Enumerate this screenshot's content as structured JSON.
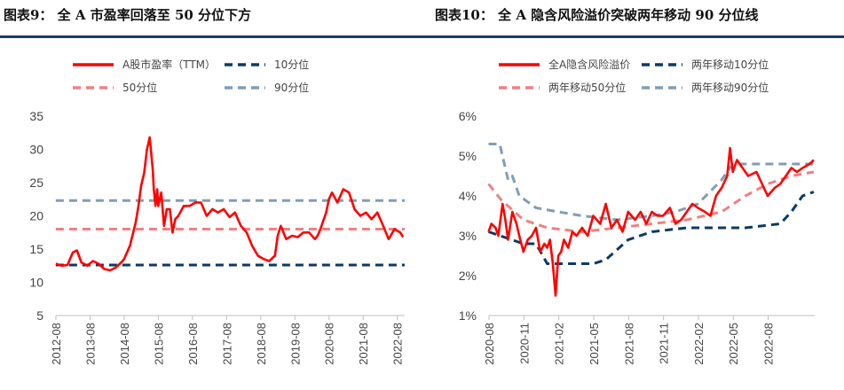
{
  "titles": {
    "left": "图表9： 全 A 市盈率回落至 50 分位下方",
    "right": "图表10： 全 A 隐含风险溢价突破两年移动 90 分位线"
  },
  "colors": {
    "red": "#ff0000",
    "navy": "#0b3a66",
    "pink": "#f08080",
    "steel": "#7f9db9",
    "axis": "#bfbfbf"
  },
  "chart_data": [
    {
      "type": "line",
      "title": "全 A 市盈率回落至 50 分位下方",
      "ylim": [
        5,
        35
      ],
      "yticks": [
        "5",
        "10",
        "15",
        "20",
        "25",
        "30",
        "35"
      ],
      "xlim": [
        2012.583,
        2022.8
      ],
      "xticks": [
        "2012-08",
        "2013-08",
        "2014-08",
        "2015-08",
        "2016-08",
        "2017-08",
        "2018-08",
        "2019-08",
        "2020-08",
        "2021-08",
        "2022-08"
      ],
      "legend": [
        "A股市盈率（TTM）",
        "10分位",
        "50分位",
        "90分位"
      ],
      "series": [
        {
          "name": "A股市盈率（TTM）",
          "x": [
            2012.58,
            2012.75,
            2012.92,
            2013.08,
            2013.2,
            2013.33,
            2013.5,
            2013.67,
            2013.83,
            2014.0,
            2014.17,
            2014.33,
            2014.5,
            2014.58,
            2014.75,
            2014.92,
            2015.0,
            2015.08,
            2015.17,
            2015.25,
            2015.33,
            2015.42,
            2015.45,
            2015.5,
            2015.55,
            2015.58,
            2015.67,
            2015.75,
            2015.83,
            2015.92,
            2016.0,
            2016.08,
            2016.17,
            2016.33,
            2016.5,
            2016.67,
            2016.83,
            2017.0,
            2017.17,
            2017.33,
            2017.5,
            2017.67,
            2017.83,
            2018.0,
            2018.17,
            2018.33,
            2018.5,
            2018.67,
            2018.83,
            2019.0,
            2019.08,
            2019.17,
            2019.25,
            2019.33,
            2019.5,
            2019.67,
            2019.83,
            2020.0,
            2020.17,
            2020.25,
            2020.33,
            2020.5,
            2020.58,
            2020.67,
            2020.83,
            2021.0,
            2021.17,
            2021.33,
            2021.5,
            2021.67,
            2021.83,
            2022.0,
            2022.17,
            2022.25,
            2022.33,
            2022.5,
            2022.67,
            2022.75
          ],
          "values": [
            12.8,
            12.5,
            12.6,
            14.5,
            14.8,
            13.0,
            12.5,
            13.2,
            12.8,
            12.0,
            11.8,
            12.2,
            13.0,
            13.5,
            15.5,
            19.0,
            21.5,
            24.5,
            26.5,
            30.0,
            31.8,
            27.0,
            24.0,
            21.5,
            24.0,
            21.5,
            23.5,
            18.5,
            21.0,
            21.0,
            17.5,
            19.5,
            20.0,
            21.5,
            21.5,
            22.0,
            22.0,
            20.0,
            21.0,
            20.5,
            21.0,
            19.8,
            20.5,
            18.5,
            17.5,
            15.5,
            14.0,
            13.5,
            13.2,
            14.0,
            17.0,
            18.5,
            17.5,
            16.5,
            17.0,
            16.8,
            17.5,
            17.5,
            16.5,
            17.0,
            18.0,
            20.5,
            22.5,
            23.5,
            22.0,
            24.0,
            23.5,
            21.0,
            20.0,
            20.5,
            19.5,
            20.5,
            18.5,
            17.5,
            16.5,
            18.0,
            17.5,
            16.8
          ]
        },
        {
          "name": "10分位",
          "x": [
            2012.58,
            2022.8
          ],
          "values": [
            12.6,
            12.6
          ]
        },
        {
          "name": "50分位",
          "x": [
            2012.58,
            2022.8
          ],
          "values": [
            18.0,
            18.0
          ]
        },
        {
          "name": "90分位",
          "x": [
            2012.58,
            2022.8
          ],
          "values": [
            22.3,
            22.3
          ]
        }
      ]
    },
    {
      "type": "line",
      "title": "全 A 隐含风险溢价突破两年移动 90 分位线",
      "ylim": [
        1,
        6
      ],
      "yticks": [
        "1%",
        "2%",
        "3%",
        "4%",
        "5%",
        "6%"
      ],
      "xlim": [
        2020.583,
        2022.917
      ],
      "xticks": [
        "2020-08",
        "2020-11",
        "2021-02",
        "2021-05",
        "2021-08",
        "2021-11",
        "2022-02",
        "2022-05",
        "2022-08"
      ],
      "legend": [
        "全A隐含风险溢价",
        "两年移动10分位",
        "两年移动50分位",
        "两年移动90分位"
      ],
      "series": [
        {
          "name": "全A隐含风险溢价",
          "x": [
            2020.58,
            2020.6,
            2020.63,
            2020.65,
            2020.68,
            2020.7,
            2020.72,
            2020.75,
            2020.78,
            2020.8,
            2020.83,
            2020.86,
            2020.89,
            2020.92,
            2020.95,
            2020.98,
            2021.0,
            2021.02,
            2021.04,
            2021.06,
            2021.08,
            2021.1,
            2021.12,
            2021.15,
            2021.18,
            2021.21,
            2021.25,
            2021.29,
            2021.33,
            2021.38,
            2021.42,
            2021.46,
            2021.5,
            2021.54,
            2021.58,
            2021.63,
            2021.67,
            2021.71,
            2021.75,
            2021.79,
            2021.83,
            2021.88,
            2021.92,
            2021.96,
            2022.0,
            2022.04,
            2022.08,
            2022.13,
            2022.17,
            2022.21,
            2022.25,
            2022.29,
            2022.31,
            2022.33,
            2022.36,
            2022.4,
            2022.44,
            2022.5,
            2022.54,
            2022.58,
            2022.63,
            2022.67,
            2022.71,
            2022.75,
            2022.79,
            2022.83,
            2022.88,
            2022.91
          ],
          "values": [
            3.1,
            3.3,
            3.2,
            3.0,
            3.8,
            3.4,
            2.9,
            3.6,
            3.3,
            3.0,
            2.6,
            2.9,
            3.0,
            3.2,
            2.6,
            2.8,
            2.7,
            2.9,
            2.3,
            1.5,
            2.5,
            2.6,
            2.9,
            2.7,
            3.1,
            3.0,
            3.2,
            3.0,
            3.5,
            3.3,
            3.8,
            3.2,
            3.4,
            3.1,
            3.6,
            3.4,
            3.6,
            3.3,
            3.6,
            3.5,
            3.5,
            3.7,
            3.3,
            3.4,
            3.6,
            3.8,
            3.7,
            3.6,
            3.5,
            4.0,
            4.2,
            4.5,
            5.2,
            4.6,
            4.9,
            4.7,
            4.5,
            4.6,
            4.3,
            4.0,
            4.2,
            4.3,
            4.5,
            4.7,
            4.6,
            4.7,
            4.8,
            4.9
          ]
        },
        {
          "name": "两年移动10分位",
          "x": [
            2020.58,
            2020.83,
            2020.92,
            2021.0,
            2021.33,
            2021.42,
            2021.58,
            2021.75,
            2022.0,
            2022.42,
            2022.67,
            2022.75,
            2022.83,
            2022.91
          ],
          "values": [
            3.1,
            2.8,
            2.8,
            2.3,
            2.3,
            2.4,
            2.9,
            3.1,
            3.2,
            3.2,
            3.3,
            3.6,
            4.0,
            4.1
          ]
        },
        {
          "name": "两年移动50分位",
          "x": [
            2020.58,
            2020.67,
            2020.83,
            2021.0,
            2021.25,
            2021.5,
            2021.75,
            2022.0,
            2022.25,
            2022.42,
            2022.58,
            2022.75,
            2022.91
          ],
          "values": [
            4.3,
            3.9,
            3.4,
            3.2,
            3.1,
            3.2,
            3.3,
            3.4,
            3.6,
            4.0,
            4.3,
            4.5,
            4.6
          ]
        },
        {
          "name": "两年移动90分位",
          "x": [
            2020.58,
            2020.66,
            2020.72,
            2020.75,
            2020.8,
            2020.92,
            2021.08,
            2021.25,
            2021.5,
            2021.75,
            2021.92,
            2022.08,
            2022.25,
            2022.33,
            2022.42,
            2022.58,
            2022.75,
            2022.91
          ],
          "values": [
            5.3,
            5.3,
            4.4,
            4.5,
            4.0,
            3.7,
            3.6,
            3.5,
            3.4,
            3.5,
            3.6,
            3.8,
            4.4,
            4.8,
            4.8,
            4.8,
            4.8,
            4.8
          ]
        }
      ]
    }
  ]
}
